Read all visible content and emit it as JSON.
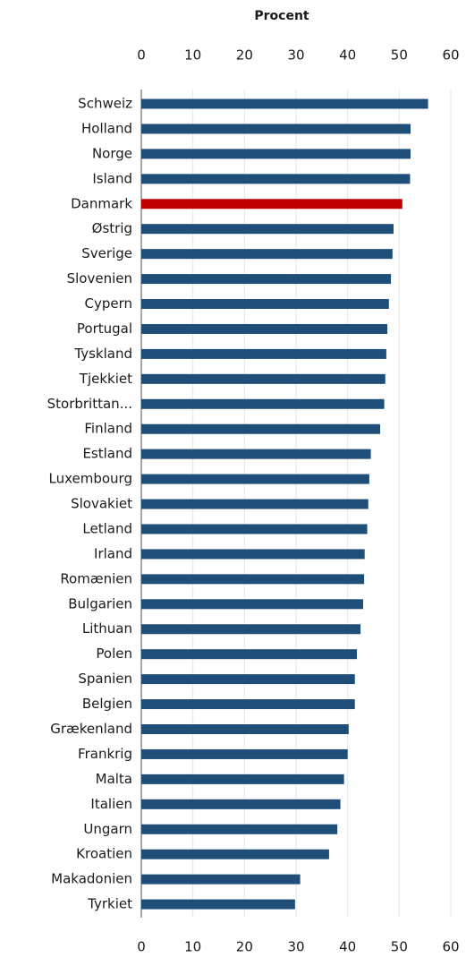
{
  "chart_data": {
    "type": "barh",
    "title": "Procent",
    "categories": [
      "Schweiz",
      "Holland",
      "Norge",
      "Island",
      "Danmark",
      "Østrig",
      "Sverige",
      "Slovenien",
      "Cypern",
      "Portugal",
      "Tyskland",
      "Tjekkiet",
      "Storbrittan...",
      "Finland",
      "Estland",
      "Luxembourg",
      "Slovakiet",
      "Letland",
      "Irland",
      "Romænien",
      "Bulgarien",
      "Lithuan",
      "Polen",
      "Spanien",
      "Belgien",
      "Grækenland",
      "Frankrig",
      "Malta",
      "Italien",
      "Ungarn",
      "Kroatien",
      "Makadonien",
      "Tyrkiet"
    ],
    "values": [
      55.6,
      52.2,
      52.2,
      52.1,
      50.6,
      48.9,
      48.7,
      48.4,
      48.0,
      47.7,
      47.5,
      47.3,
      47.1,
      46.3,
      44.5,
      44.2,
      44.0,
      43.8,
      43.3,
      43.2,
      43.0,
      42.5,
      41.8,
      41.4,
      41.4,
      40.2,
      40.0,
      39.3,
      38.6,
      38.0,
      36.4,
      30.8,
      29.8
    ],
    "color": "#1f4e79",
    "colors": {
      "Danmark": "#c00000"
    },
    "xlim": [
      0,
      60
    ],
    "xticks": [
      0,
      10,
      20,
      30,
      40,
      50,
      60
    ],
    "grid": true
  }
}
